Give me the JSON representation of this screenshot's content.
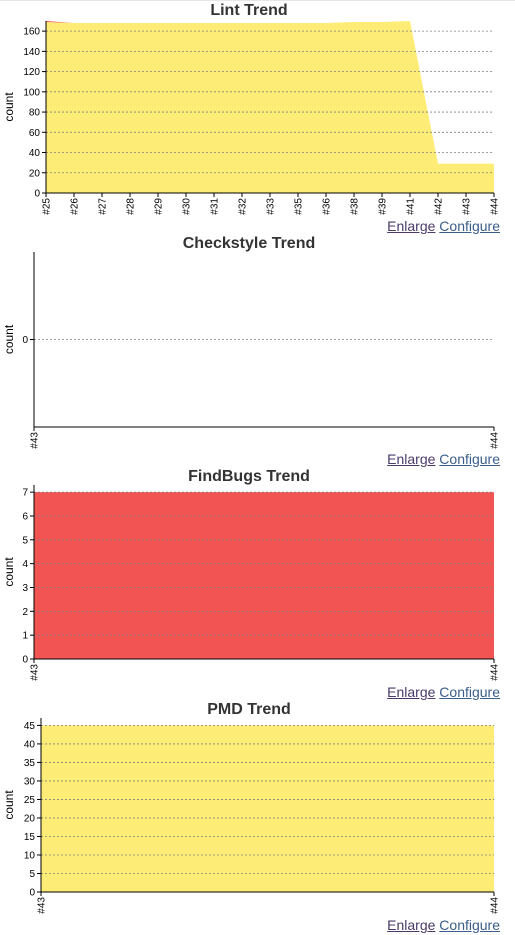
{
  "links": {
    "enlarge": "Enlarge",
    "configure": "Configure"
  },
  "colors": {
    "yellow": "#fdec75",
    "red": "#f25454",
    "axis": "#000000",
    "grid": "#808080"
  },
  "chart_data": [
    {
      "type": "area",
      "title": "Lint Trend",
      "ylabel": "count",
      "ylim": [
        0,
        170
      ],
      "yticks": [
        0,
        20,
        40,
        60,
        80,
        100,
        120,
        140,
        160
      ],
      "grid": true,
      "categories": [
        "#25",
        "#26",
        "#27",
        "#28",
        "#29",
        "#30",
        "#31",
        "#32",
        "#33",
        "#35",
        "#36",
        "#38",
        "#39",
        "#41",
        "#42",
        "#43",
        "#44"
      ],
      "series": [
        {
          "color": "#fdec75",
          "values": [
            169,
            168,
            168,
            168,
            168,
            168,
            168,
            168,
            168,
            168,
            168,
            169,
            169,
            170,
            29,
            29,
            29
          ]
        },
        {
          "color": "#f25454",
          "values": [
            1,
            0,
            0,
            0,
            0,
            0,
            0,
            0,
            0,
            0,
            0,
            0,
            0,
            0,
            0,
            0,
            0
          ]
        }
      ]
    },
    {
      "type": "area",
      "title": "Checkstyle Trend",
      "ylabel": "count",
      "ylim": [
        -1,
        1
      ],
      "yticks": [
        0
      ],
      "grid": true,
      "categories": [
        "#43",
        "#44"
      ],
      "series": [
        {
          "color": "#fdec75",
          "values": [
            0,
            0
          ]
        }
      ]
    },
    {
      "type": "area",
      "title": "FindBugs Trend",
      "ylabel": "count",
      "ylim": [
        0,
        7.3
      ],
      "yticks": [
        0,
        1,
        2,
        3,
        4,
        5,
        6,
        7
      ],
      "grid": true,
      "categories": [
        "#43",
        "#44"
      ],
      "series": [
        {
          "color": "#f25454",
          "values": [
            7,
            7
          ]
        }
      ]
    },
    {
      "type": "area",
      "title": "PMD Trend",
      "ylabel": "count",
      "ylim": [
        0,
        47
      ],
      "yticks": [
        0,
        5,
        10,
        15,
        20,
        25,
        30,
        35,
        40,
        45
      ],
      "grid": true,
      "categories": [
        "#43",
        "#44"
      ],
      "series": [
        {
          "color": "#fdec75",
          "values": [
            45,
            45
          ]
        }
      ]
    }
  ]
}
